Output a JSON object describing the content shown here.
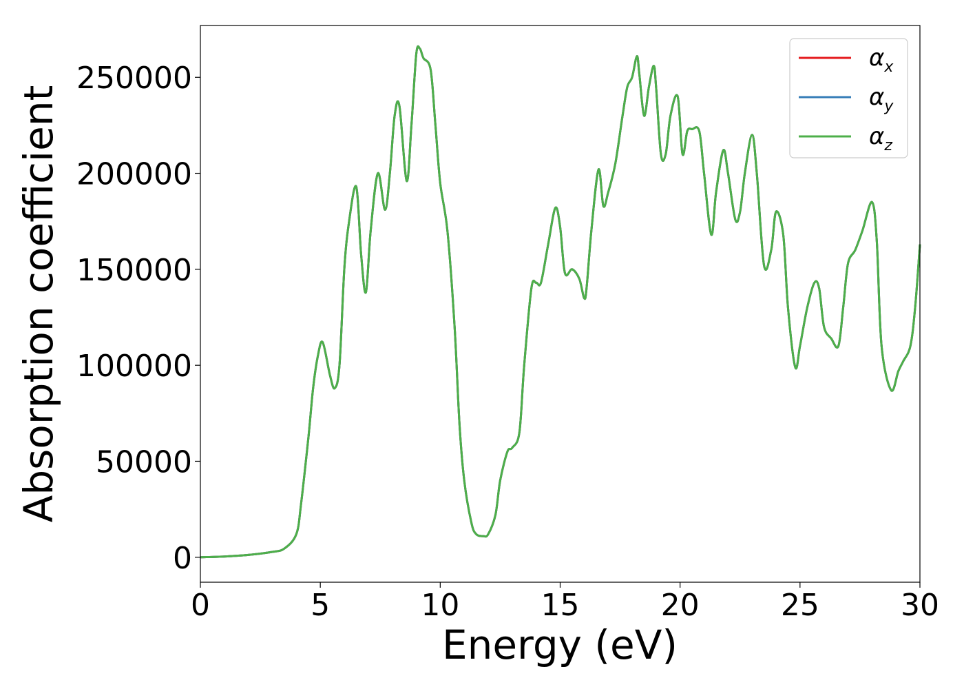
{
  "chart_data": {
    "type": "line",
    "title": "",
    "xlabel": "Energy (eV)",
    "ylabel": "Absorption coefficient",
    "xlim": [
      0,
      30
    ],
    "ylim": [
      -13000,
      277000
    ],
    "xticks": [
      0,
      5,
      10,
      15,
      20,
      25,
      30
    ],
    "yticks": [
      0,
      50000,
      100000,
      150000,
      200000,
      250000
    ],
    "grid": false,
    "legend_position": "top-right",
    "series": [
      {
        "name": "α",
        "subscript": "x",
        "color": "#e41a1c",
        "ref": "main"
      },
      {
        "name": "α",
        "subscript": "y",
        "color": "#377eb8",
        "ref": "main"
      },
      {
        "name": "α",
        "subscript": "z",
        "color": "#4daf4a",
        "ref": "main"
      }
    ],
    "main": {
      "x": [
        0,
        1,
        2,
        3,
        3.5,
        4,
        4.2,
        4.5,
        4.7,
        4.9,
        5.1,
        5.4,
        5.6,
        5.8,
        6.0,
        6.2,
        6.5,
        6.7,
        6.9,
        7.1,
        7.4,
        7.7,
        7.9,
        8.1,
        8.3,
        8.6,
        8.8,
        9.0,
        9.15,
        9.3,
        9.6,
        9.8,
        10.0,
        10.3,
        10.6,
        10.8,
        11.0,
        11.3,
        11.5,
        11.8,
        12.0,
        12.3,
        12.5,
        12.8,
        13.0,
        13.3,
        13.5,
        13.8,
        14.0,
        14.2,
        14.5,
        14.8,
        15.0,
        15.2,
        15.5,
        15.8,
        16.0,
        16.1,
        16.3,
        16.6,
        16.8,
        17.0,
        17.3,
        17.6,
        17.8,
        18.0,
        18.2,
        18.3,
        18.5,
        18.7,
        18.9,
        19.0,
        19.2,
        19.4,
        19.6,
        19.9,
        20.1,
        20.3,
        20.5,
        20.8,
        21.0,
        21.3,
        21.5,
        21.8,
        22.0,
        22.3,
        22.5,
        22.7,
        23.0,
        23.2,
        23.5,
        23.8,
        24.0,
        24.3,
        24.5,
        24.8,
        25.0,
        25.3,
        25.6,
        25.8,
        26.0,
        26.3,
        26.6,
        26.8,
        27.0,
        27.3,
        27.6,
        28.0,
        28.2,
        28.4,
        28.8,
        29.1,
        29.3,
        29.6,
        29.8,
        30.0
      ],
      "y": [
        0,
        400,
        1200,
        2800,
        4500,
        12000,
        28000,
        62000,
        88000,
        105000,
        112000,
        95000,
        88000,
        100000,
        150000,
        175000,
        193000,
        158000,
        138000,
        170000,
        200000,
        181000,
        200000,
        230000,
        235000,
        196000,
        225000,
        262000,
        265000,
        260000,
        254000,
        225000,
        195000,
        170000,
        120000,
        70000,
        40000,
        18000,
        12000,
        11000,
        12000,
        22000,
        40000,
        55000,
        57000,
        65000,
        100000,
        140000,
        143000,
        143000,
        163000,
        182000,
        172000,
        148000,
        150000,
        145000,
        135000,
        140000,
        170000,
        202000,
        183000,
        190000,
        205000,
        230000,
        245000,
        250000,
        261000,
        252000,
        230000,
        245000,
        256000,
        245000,
        210000,
        210000,
        230000,
        240000,
        210000,
        222000,
        223000,
        222000,
        200000,
        168000,
        190000,
        212000,
        200000,
        176000,
        180000,
        200000,
        220000,
        200000,
        152000,
        160000,
        180000,
        168000,
        130000,
        99000,
        110000,
        130000,
        143000,
        140000,
        120000,
        114000,
        110000,
        130000,
        153000,
        160000,
        170000,
        185000,
        165000,
        110000,
        87000,
        97000,
        102000,
        110000,
        130000,
        163000
      ]
    }
  }
}
